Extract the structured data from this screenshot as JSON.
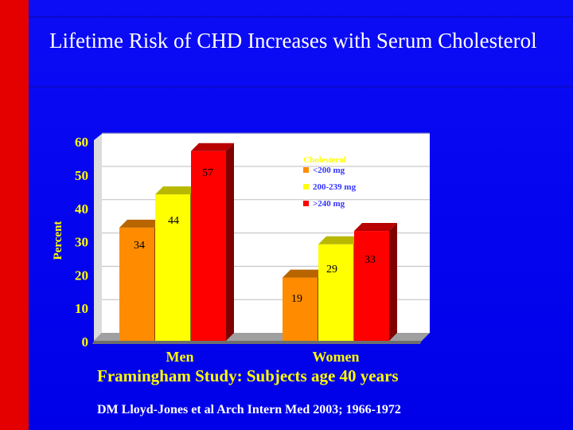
{
  "slide": {
    "title": "Lifetime Risk of CHD Increases with Serum Cholesterol",
    "caption": "Framingham Study: Subjects age 40 years",
    "citation": "DM Lloyd-Jones et al Arch Intern Med 2003; 1966-1972"
  },
  "colors": {
    "background": "#0000ff",
    "left_bar": "#e50000",
    "axis_text": "#ffff00",
    "plot_face": "#ffffff"
  },
  "chart_data": {
    "type": "bar",
    "title": "",
    "xlabel": "",
    "ylabel": "Percent",
    "ylim": [
      0,
      60
    ],
    "yticks": [
      0,
      10,
      20,
      30,
      40,
      50,
      60
    ],
    "categories": [
      "Men",
      "Women"
    ],
    "legend": {
      "title": "Cholesterol",
      "position": "top-right"
    },
    "series": [
      {
        "name": "<200 mg",
        "color": "#ff8c00",
        "values": [
          34,
          19
        ],
        "labels": [
          "34",
          "19"
        ]
      },
      {
        "name": "200-239 mg",
        "color": "#ffff00",
        "values": [
          44,
          29
        ],
        "labels": [
          "44",
          "29"
        ]
      },
      {
        "name": ">240 mg",
        "color": "#ff0000",
        "values": [
          57,
          33
        ],
        "labels": [
          "57",
          "33"
        ]
      }
    ]
  }
}
